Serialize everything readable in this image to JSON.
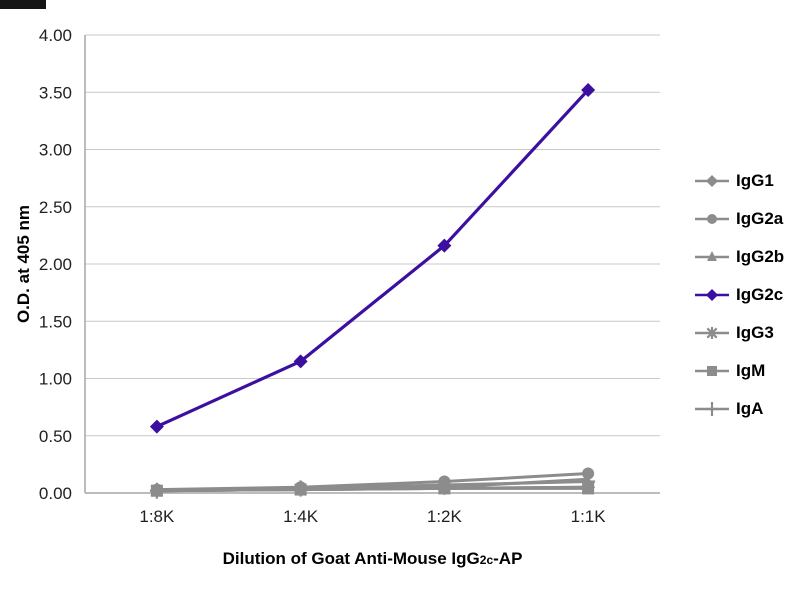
{
  "chart_data": {
    "type": "line",
    "title": "",
    "xlabel": "Dilution of Goat Anti-Mouse IgG2c-AP",
    "xlabel_parts": {
      "pre": "Dilution of Goat Anti-Mouse IgG",
      "sub": "2c",
      "post": "-AP"
    },
    "ylabel": "O.D. at 405 nm",
    "categories": [
      "1:8K",
      "1:4K",
      "1:2K",
      "1:1K"
    ],
    "ylim": [
      0,
      4.0
    ],
    "ytick_step": 0.5,
    "ytick_labels": [
      "0.00",
      "0.50",
      "1.00",
      "1.50",
      "2.00",
      "2.50",
      "3.00",
      "3.50",
      "4.00"
    ],
    "grid": true,
    "legend_position": "right",
    "colors": {
      "accent": "#3d0fa0",
      "muted": "#8c8c8c",
      "grid": "#c9c9c9",
      "axis": "#a6a6a6",
      "text": "#212121"
    },
    "series": [
      {
        "name": "IgG1",
        "marker": "diamond",
        "color": "#8c8c8c",
        "values": [
          0.02,
          0.03,
          0.04,
          0.05
        ]
      },
      {
        "name": "IgG2a",
        "marker": "circle",
        "color": "#8c8c8c",
        "values": [
          0.03,
          0.05,
          0.1,
          0.17
        ]
      },
      {
        "name": "IgG2b",
        "marker": "triangle",
        "color": "#8c8c8c",
        "values": [
          0.02,
          0.03,
          0.04,
          0.05
        ]
      },
      {
        "name": "IgG2c",
        "marker": "diamond",
        "color": "#3d0fa0",
        "values": [
          0.58,
          1.15,
          2.16,
          3.52
        ]
      },
      {
        "name": "IgG3",
        "marker": "asterisk",
        "color": "#8c8c8c",
        "values": [
          0.02,
          0.03,
          0.05,
          0.12
        ]
      },
      {
        "name": "IgM",
        "marker": "square",
        "color": "#8c8c8c",
        "values": [
          0.02,
          0.03,
          0.04,
          0.04
        ]
      },
      {
        "name": "IgA",
        "marker": "plus",
        "color": "#8c8c8c",
        "values": [
          0.02,
          0.04,
          0.07,
          0.1
        ]
      }
    ]
  }
}
